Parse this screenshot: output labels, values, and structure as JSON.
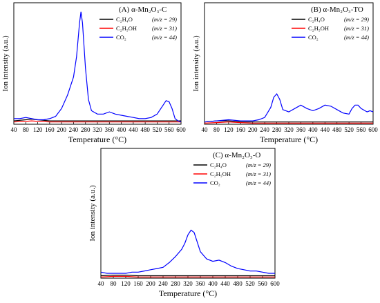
{
  "chart_data": [
    {
      "type": "line",
      "title": "(A) α-Mn₂O₃-C",
      "xlabel": "Temperature (°C)",
      "ylabel": "Ion intensity (a.u.)",
      "xlim": [
        40,
        600
      ],
      "x_ticks": [
        "40",
        "80",
        "120",
        "160",
        "200",
        "240",
        "280",
        "320",
        "360",
        "400",
        "440",
        "480",
        "520",
        "560",
        "600"
      ],
      "legend_position": "top-right",
      "series": [
        {
          "name": "C₂H₄O",
          "mz": "(m/z = 29)",
          "color": "#000000",
          "x": [
            40,
            80,
            100,
            120,
            160,
            200,
            240,
            280,
            320,
            360,
            400,
            440,
            480,
            520,
            560,
            600
          ],
          "y": [
            3,
            4,
            4.5,
            4,
            3,
            3,
            3,
            3,
            3,
            3,
            3,
            3,
            3,
            3,
            3,
            3
          ]
        },
        {
          "name": "C₂H₅OH",
          "mz": "(m/z = 31)",
          "color": "#ff0000",
          "x": [
            40,
            80,
            100,
            120,
            160,
            200,
            240,
            280,
            320,
            360,
            400,
            440,
            480,
            520,
            560,
            600
          ],
          "y": [
            2,
            2.5,
            3,
            2.5,
            2,
            2,
            2,
            2,
            2,
            2,
            2,
            2,
            2,
            2,
            2,
            2
          ]
        },
        {
          "name": "CO₂",
          "mz": "(m/z = 44)",
          "color": "#0000ff",
          "x": [
            40,
            60,
            80,
            100,
            120,
            140,
            160,
            180,
            200,
            220,
            240,
            250,
            260,
            265,
            270,
            280,
            290,
            300,
            320,
            340,
            360,
            380,
            400,
            420,
            440,
            460,
            480,
            500,
            520,
            540,
            550,
            560,
            570,
            580,
            590,
            600
          ],
          "y": [
            5,
            5,
            6,
            5,
            4,
            4,
            5,
            7,
            14,
            26,
            42,
            60,
            90,
            100,
            90,
            50,
            22,
            12,
            9,
            9,
            11,
            9,
            8,
            7,
            6,
            5,
            5,
            6,
            9,
            17,
            21,
            20,
            14,
            5,
            3,
            2
          ]
        }
      ]
    },
    {
      "type": "line",
      "title": "(B) α-Mn₂O₃-TO",
      "xlabel": "Temperature (°C)",
      "ylabel": "Ion intensity (a.u.)",
      "xlim": [
        40,
        600
      ],
      "x_ticks": [
        "40",
        "80",
        "120",
        "160",
        "200",
        "240",
        "280",
        "320",
        "360",
        "400",
        "440",
        "480",
        "520",
        "560",
        "600"
      ],
      "legend_position": "top-right",
      "series": [
        {
          "name": "C₂H₄O",
          "mz": "(m/z = 29)",
          "color": "#000000",
          "x": [
            40,
            80,
            120,
            160,
            200,
            240,
            280,
            320,
            360,
            400,
            440,
            480,
            520,
            560,
            600
          ],
          "y": [
            2,
            3,
            3,
            2,
            2,
            2,
            2,
            2,
            2,
            2,
            2,
            2,
            2,
            2,
            2
          ]
        },
        {
          "name": "C₂H₅OH",
          "mz": "(m/z = 31)",
          "color": "#ff0000",
          "x": [
            40,
            80,
            120,
            160,
            200,
            240,
            280,
            320,
            360,
            400,
            440,
            480,
            520,
            560,
            600
          ],
          "y": [
            1,
            1.5,
            2,
            1.5,
            1,
            1,
            1,
            1,
            1,
            1,
            1,
            1,
            1,
            1,
            1
          ]
        },
        {
          "name": "CO₂",
          "mz": "(m/z = 44)",
          "color": "#0000ff",
          "x": [
            40,
            80,
            120,
            160,
            200,
            220,
            240,
            260,
            270,
            280,
            290,
            300,
            320,
            340,
            360,
            380,
            400,
            420,
            440,
            460,
            480,
            500,
            520,
            530,
            540,
            550,
            560,
            580,
            590,
            600
          ],
          "y": [
            2,
            3,
            4,
            3,
            3,
            4,
            6,
            15,
            24,
            27,
            22,
            13,
            11,
            14,
            17,
            14,
            12,
            14,
            17,
            16,
            13,
            10,
            9,
            14,
            17,
            17,
            14,
            11,
            12,
            11
          ]
        }
      ]
    },
    {
      "type": "line",
      "title": "(C) α-Mn₂O₃-O",
      "xlabel": "Temperature (°C)",
      "ylabel": "Ion intensity (a.u.)",
      "xlim": [
        40,
        600
      ],
      "x_ticks": [
        "40",
        "80",
        "120",
        "160",
        "200",
        "240",
        "280",
        "320",
        "360",
        "400",
        "440",
        "480",
        "520",
        "560",
        "600"
      ],
      "legend_position": "top-right",
      "series": [
        {
          "name": "C₂H₄O",
          "mz": "(m/z = 29)",
          "color": "#000000",
          "x": [
            40,
            80,
            120,
            160,
            200,
            240,
            280,
            320,
            360,
            400,
            440,
            480,
            520,
            560,
            600
          ],
          "y": [
            2,
            2.5,
            2.5,
            2,
            2,
            2,
            2,
            2,
            2,
            2,
            2,
            2,
            2,
            2,
            2
          ]
        },
        {
          "name": "C₂H₅OH",
          "mz": "(m/z = 31)",
          "color": "#ff0000",
          "x": [
            40,
            80,
            120,
            160,
            200,
            240,
            280,
            320,
            360,
            400,
            440,
            480,
            520,
            560,
            600
          ],
          "y": [
            1,
            1.5,
            1.5,
            1,
            1,
            1,
            1,
            1,
            1,
            1,
            1,
            1,
            1,
            1,
            1
          ]
        },
        {
          "name": "CO₂",
          "mz": "(m/z = 44)",
          "color": "#0000ff",
          "x": [
            40,
            60,
            80,
            100,
            120,
            140,
            160,
            180,
            200,
            220,
            240,
            260,
            280,
            300,
            310,
            320,
            330,
            340,
            350,
            360,
            380,
            400,
            420,
            440,
            460,
            480,
            500,
            520,
            540,
            560,
            580,
            600
          ],
          "y": [
            5,
            4,
            4,
            4,
            4,
            5,
            5,
            6,
            7,
            8,
            9,
            13,
            18,
            24,
            29,
            36,
            40,
            38,
            30,
            22,
            16,
            14,
            15,
            13,
            10,
            8,
            7,
            6,
            6,
            5,
            4,
            4
          ]
        }
      ]
    }
  ]
}
